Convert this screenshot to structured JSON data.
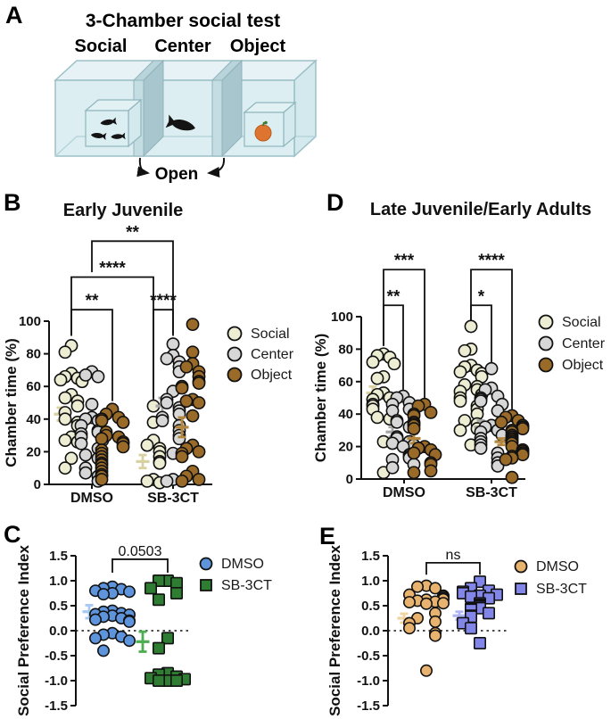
{
  "panels": {
    "a": {
      "label": "A",
      "title": "3-Chamber social test",
      "chambers": [
        "Social",
        "Center",
        "Object"
      ],
      "door_label": "Open"
    },
    "b": {
      "label": "B"
    },
    "c": {
      "label": "C"
    },
    "d": {
      "label": "D"
    },
    "e": {
      "label": "E"
    }
  },
  "colors": {
    "social": "#ecedd2",
    "center": "#d7d7d7",
    "object": "#9a6b28",
    "dmso_blue": "#5e94db",
    "sb_green": "#2e7d33",
    "dmso_tan": "#e8b26f",
    "sb_purple": "#8286e8",
    "tank_fill": "#ddeef2",
    "tank_edge": "#9cc0c7",
    "divider": "#a7c6cd"
  },
  "chart_data": [
    {
      "id": "b",
      "type": "scatter",
      "title": "Early Juvenile",
      "ylabel": "Chamber time (%)",
      "ylim": [
        0,
        100
      ],
      "yticks": [
        0,
        20,
        40,
        60,
        80,
        100
      ],
      "tick_format": "int",
      "zero_line": false,
      "baseline": true,
      "categories": [
        "DMSO",
        "SB-3CT"
      ],
      "series": [
        {
          "name": "Social",
          "shape": "circle",
          "fill": "#ecedd2",
          "mean_color": "#d8d1a2"
        },
        {
          "name": "Center",
          "shape": "circle",
          "fill": "#d7d7d7",
          "mean_color": "#a6a6a6"
        },
        {
          "name": "Object",
          "shape": "circle",
          "fill": "#9a6b28",
          "mean_color": "#b3873e"
        }
      ],
      "points": {
        "DMSO": {
          "Social": [
            85,
            81,
            68,
            66,
            65,
            64,
            63,
            55,
            53,
            51,
            48,
            44,
            40,
            38,
            36,
            29,
            27,
            26,
            16,
            10
          ],
          "Center": [
            69,
            67,
            66,
            49,
            41,
            40,
            39,
            36,
            33,
            32,
            31,
            29,
            27,
            25,
            22,
            18,
            16,
            10,
            7,
            5,
            2
          ],
          "Object": [
            46,
            43,
            41,
            40,
            39,
            38,
            32,
            30,
            29,
            28,
            26,
            25,
            23,
            21,
            19,
            17,
            15,
            13,
            12,
            10,
            8,
            6,
            5,
            3
          ]
        },
        "SB-3CT": {
          "Social": [
            48,
            38,
            27,
            24,
            22,
            20,
            17,
            14,
            13,
            3,
            2,
            1
          ],
          "Center": [
            86,
            79,
            77,
            75,
            72,
            69,
            57,
            52,
            50,
            47,
            45,
            43,
            41,
            39,
            36,
            33,
            30,
            28,
            19,
            3,
            2
          ],
          "Object": [
            98,
            81,
            74,
            72,
            69,
            66,
            63,
            62,
            60,
            59,
            52,
            51,
            50,
            42,
            24,
            22,
            20,
            19,
            17,
            8,
            5,
            3,
            2
          ]
        }
      },
      "mean_sem": {
        "DMSO": {
          "Social": [
            43,
            4
          ],
          "Center": [
            30,
            4
          ],
          "Object": [
            22,
            3
          ]
        },
        "SB-3CT": {
          "Social": [
            14,
            4
          ],
          "Center": [
            48,
            5
          ],
          "Object": [
            35,
            6
          ]
        }
      },
      "significance": [
        {
          "from": [
            "DMSO",
            "Center"
          ],
          "to": [
            "SB-3CT",
            "Center"
          ],
          "label": "**",
          "bar": 149,
          "from_drop": 130,
          "to_drop": 92
        },
        {
          "from": [
            "DMSO",
            "Social"
          ],
          "to": [
            "SB-3CT",
            "Social"
          ],
          "label": "****",
          "bar": 127,
          "from_drop": 91,
          "to_drop": 52
        },
        {
          "from": [
            "DMSO",
            "Social"
          ],
          "to": [
            "DMSO",
            "Object"
          ],
          "label": "**",
          "bar": 107,
          "from_drop": 91,
          "to_drop": 51
        },
        {
          "from": [
            "SB-3CT",
            "Social"
          ],
          "to": [
            "SB-3CT",
            "Center"
          ],
          "label": "****",
          "bar": 107,
          "from_drop": 53,
          "to_drop": 91
        }
      ]
    },
    {
      "id": "d",
      "type": "scatter",
      "title": "Late Juvenile/Early Adults",
      "ylabel": "Chamber time (%)",
      "ylim": [
        0,
        100
      ],
      "yticks": [
        0,
        20,
        40,
        60,
        80,
        100
      ],
      "tick_format": "int",
      "zero_line": false,
      "baseline": true,
      "categories": [
        "DMSO",
        "SB-3CT"
      ],
      "series": [
        {
          "name": "Social",
          "shape": "circle",
          "fill": "#ecedd2",
          "mean_color": "#d8d1a2"
        },
        {
          "name": "Center",
          "shape": "circle",
          "fill": "#d7d7d7",
          "mean_color": "#a6a6a6"
        },
        {
          "name": "Object",
          "shape": "circle",
          "fill": "#9a6b28",
          "mean_color": "#b3873e"
        }
      ],
      "points": {
        "DMSO": {
          "Social": [
            77,
            76,
            75,
            72,
            71,
            63,
            62,
            53,
            52,
            50,
            49,
            46,
            45,
            43,
            38,
            37,
            23,
            4
          ],
          "Center": [
            51,
            50,
            47,
            46,
            43,
            42,
            36,
            35,
            32,
            26,
            25,
            23,
            22,
            21,
            20,
            15,
            14,
            13,
            12,
            9,
            7
          ],
          "Object": [
            46,
            45,
            41,
            40,
            39,
            35,
            34,
            33,
            31,
            20,
            19,
            18,
            16,
            15,
            10,
            9,
            5,
            4
          ]
        },
        "SB-3CT": {
          "Social": [
            94,
            80,
            79,
            70,
            69,
            67,
            66,
            65,
            63,
            58,
            57,
            55,
            54,
            52,
            50,
            48,
            45,
            43,
            40,
            36,
            34,
            31,
            30,
            21
          ],
          "Center": [
            68,
            56,
            55,
            51,
            50,
            49,
            48,
            46,
            42,
            33,
            32,
            30,
            29,
            27,
            25,
            23,
            21,
            19,
            16,
            13,
            10,
            8
          ],
          "Object": [
            39,
            38,
            36,
            35,
            33,
            32,
            31,
            30,
            29,
            27,
            26,
            25,
            24,
            23,
            22,
            20,
            18,
            17,
            16,
            15,
            14,
            13,
            12,
            1
          ]
        }
      },
      "mean_sem": {
        "DMSO": {
          "Social": [
            53,
            4
          ],
          "Center": [
            29,
            3
          ],
          "Object": [
            25,
            3
          ]
        },
        "SB-3CT": {
          "Social": [
            52,
            4
          ],
          "Center": [
            32,
            4
          ],
          "Object": [
            23,
            2
          ]
        }
      },
      "significance": [
        {
          "from": [
            "DMSO",
            "Social"
          ],
          "to": [
            "DMSO",
            "Object"
          ],
          "label": "***",
          "bar": 129,
          "from_drop": 82,
          "to_drop": 48
        },
        {
          "from": [
            "DMSO",
            "Social"
          ],
          "to": [
            "DMSO",
            "Center"
          ],
          "label": "**",
          "bar": 107,
          "from_drop": 82,
          "to_drop": 55
        },
        {
          "from": [
            "SB-3CT",
            "Social"
          ],
          "to": [
            "SB-3CT",
            "Object"
          ],
          "label": "****",
          "bar": 129,
          "from_drop": 97,
          "to_drop": 43
        },
        {
          "from": [
            "SB-3CT",
            "Social"
          ],
          "to": [
            "SB-3CT",
            "Center"
          ],
          "label": "*",
          "bar": 107,
          "from_drop": 97,
          "to_drop": 72
        }
      ]
    },
    {
      "id": "c",
      "type": "scatter",
      "title": "",
      "ylabel": "Social Preference Index",
      "ylim": [
        -1.5,
        1.5
      ],
      "yticks": [
        -1.5,
        -1.0,
        -0.5,
        0.0,
        0.5,
        1.0,
        1.5
      ],
      "tick_format": "dec1",
      "zero_line": true,
      "baseline": false,
      "categories": [
        "DMSO",
        "SB-3CT"
      ],
      "series": [
        {
          "name": "DMSO",
          "shape": "circle",
          "fill": "#5e94db",
          "mean_color": "#a6c9f2"
        },
        {
          "name": "SB-3CT",
          "shape": "square",
          "fill": "#2e7d33",
          "mean_color": "#4cae50"
        }
      ],
      "points": {
        "DMSO": {
          "DMSO": [
            0.88,
            0.85,
            0.83,
            0.8,
            0.78,
            0.75,
            0.73,
            0.4,
            0.38,
            0.35,
            0.33,
            0.32,
            0.3,
            0.28,
            0.25,
            0.22,
            0.2,
            0.18,
            -0.05,
            -0.08,
            -0.12,
            -0.15,
            -0.2,
            -0.4
          ]
        },
        "SB-3CT": {
          "SB-3CT": [
            1.0,
            1.0,
            0.95,
            0.85,
            0.75,
            0.62,
            -0.15,
            -0.35,
            -0.85,
            -0.88,
            -0.92,
            -0.95,
            -0.97,
            -1.0,
            -1.0,
            -1.0
          ]
        }
      },
      "mean_sem": {
        "DMSO": {
          "DMSO": [
            0.38,
            0.13
          ]
        },
        "SB-3CT": {
          "SB-3CT": [
            -0.22,
            0.2
          ]
        }
      },
      "significance": [
        {
          "from": [
            "DMSO",
            "DMSO"
          ],
          "to": [
            "SB-3CT",
            "SB-3CT"
          ],
          "label": "0.0503",
          "bar": 1.43,
          "from_drop": 1.16,
          "to_drop": 1.16
        }
      ]
    },
    {
      "id": "e",
      "type": "scatter",
      "title": "",
      "ylabel": "Social Preference Index",
      "ylim": [
        -1.5,
        1.5
      ],
      "yticks": [
        -1.5,
        -1.0,
        -0.5,
        0.0,
        0.5,
        1.0,
        1.5
      ],
      "tick_format": "dec1",
      "zero_line": true,
      "baseline": false,
      "categories": [
        "DMSO",
        "SB-3CT"
      ],
      "series": [
        {
          "name": "DMSO",
          "shape": "circle",
          "fill": "#e8b26f",
          "mean_color": "#f2d3a2"
        },
        {
          "name": "SB-3CT",
          "shape": "square",
          "fill": "#8286e8",
          "mean_color": "#b0b6f5"
        }
      ],
      "points": {
        "DMSO": {
          "DMSO": [
            0.9,
            0.88,
            0.85,
            0.72,
            0.7,
            0.68,
            0.65,
            0.63,
            0.62,
            0.6,
            0.58,
            0.57,
            0.55,
            0.54,
            0.35,
            0.25,
            0.18,
            0.15,
            0.05,
            -0.05,
            -0.1,
            -0.8
          ]
        },
        "SB-3CT": {
          "SB-3CT": [
            0.98,
            0.85,
            0.8,
            0.78,
            0.75,
            0.72,
            0.7,
            0.68,
            0.65,
            0.55,
            0.52,
            0.5,
            0.48,
            0.45,
            0.44,
            0.42,
            0.35,
            0.3,
            0.28,
            0.15,
            0.05,
            -0.25
          ]
        }
      },
      "mean_sem": {
        "DMSO": {
          "DMSO": [
            0.25,
            0.09
          ]
        },
        "SB-3CT": {
          "SB-3CT": [
            0.3,
            0.08
          ]
        }
      },
      "significance": [
        {
          "from": [
            "DMSO",
            "DMSO"
          ],
          "to": [
            "SB-3CT",
            "SB-3CT"
          ],
          "label": "ns",
          "bar": 1.36,
          "from_drop": 1.12,
          "to_drop": 1.12
        }
      ]
    }
  ]
}
